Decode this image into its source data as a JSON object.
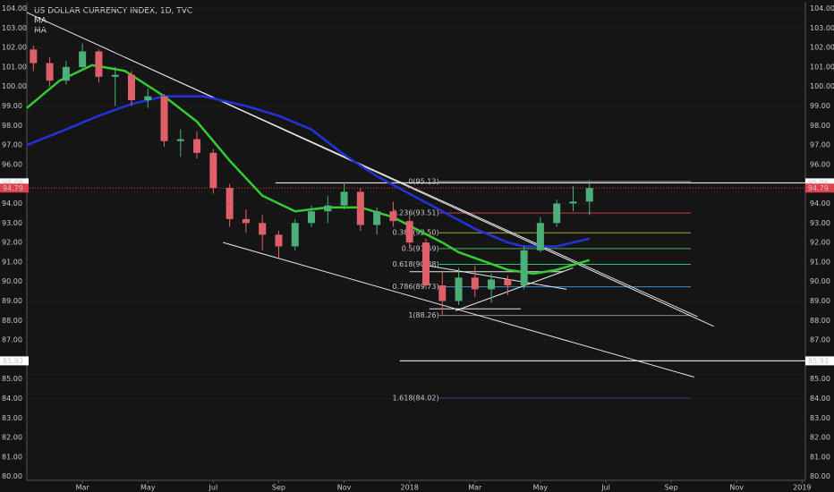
{
  "chart_data": {
    "type": "candlestick",
    "title": "US DOLLAR CURRENCY INDEX, 1D, TVC",
    "up_color": "#4caf7a",
    "down_color": "#e0606a",
    "x": [
      0.5,
      1.0,
      1.5,
      2.0,
      2.5,
      3.0,
      3.5,
      4.0,
      4.5,
      5.0,
      5.5,
      6.0,
      6.5,
      7.0,
      7.5,
      8.0,
      8.5,
      9.0,
      9.5,
      10.0,
      10.5,
      11.0,
      11.5,
      12.0,
      12.5,
      13.0,
      13.5,
      14.0,
      14.5,
      15.0,
      15.5,
      16.0,
      16.5,
      17.0,
      17.5
    ],
    "open": [
      101.9,
      101.2,
      100.3,
      101.0,
      101.8,
      100.5,
      100.6,
      99.3,
      99.5,
      97.2,
      97.3,
      96.6,
      94.8,
      93.2,
      93.0,
      92.4,
      91.8,
      93.0,
      93.6,
      93.9,
      94.6,
      92.9,
      93.6,
      93.1,
      92.0,
      89.8,
      89.0,
      90.2,
      89.6,
      90.1,
      89.8,
      91.6,
      93.0,
      94.0,
      94.1
    ],
    "high": [
      102.1,
      101.5,
      101.3,
      102.2,
      101.9,
      101.0,
      100.8,
      99.9,
      99.6,
      97.8,
      97.7,
      96.8,
      95.0,
      93.7,
      93.4,
      92.6,
      93.2,
      93.9,
      94.4,
      95.1,
      94.8,
      93.8,
      94.1,
      93.4,
      92.2,
      90.5,
      90.7,
      90.8,
      90.4,
      90.3,
      91.8,
      93.3,
      94.2,
      94.9,
      95.2
    ],
    "low": [
      100.8,
      100.0,
      100.1,
      100.9,
      100.2,
      99.0,
      99.0,
      98.9,
      96.9,
      96.4,
      96.3,
      94.5,
      92.8,
      92.5,
      91.6,
      91.2,
      91.6,
      92.8,
      93.0,
      93.7,
      92.6,
      92.4,
      92.8,
      91.7,
      89.6,
      88.3,
      88.8,
      89.2,
      88.9,
      89.3,
      89.6,
      91.5,
      92.8,
      93.6,
      93.4
    ],
    "close": [
      101.2,
      100.3,
      101.0,
      101.8,
      100.5,
      100.6,
      99.3,
      99.5,
      97.2,
      97.3,
      96.6,
      94.8,
      93.2,
      93.0,
      92.4,
      91.8,
      93.0,
      93.6,
      93.9,
      94.6,
      92.9,
      93.6,
      93.1,
      92.0,
      89.8,
      89.0,
      90.2,
      89.6,
      90.1,
      89.8,
      91.6,
      93.0,
      94.0,
      94.1,
      94.79
    ],
    "series": [
      {
        "name": "MA",
        "color": "#33cc33",
        "x": [
          0.3,
          1.3,
          2.3,
          3.3,
          4.5,
          5.5,
          6.5,
          7.5,
          8.5,
          9.5,
          10.5,
          11.5,
          12.3,
          13.0,
          13.5,
          14.5,
          15.0,
          15.8,
          16.5,
          17.5
        ],
        "values": [
          98.9,
          100.3,
          101.1,
          100.8,
          99.5,
          98.2,
          96.2,
          94.4,
          93.6,
          93.8,
          93.8,
          93.3,
          92.6,
          92.0,
          91.5,
          90.9,
          90.6,
          90.4,
          90.6,
          91.1
        ]
      },
      {
        "name": "MA",
        "color": "#2233dd",
        "x": [
          0.3,
          1.5,
          2.5,
          3.5,
          4.5,
          5.7,
          7.0,
          8.0,
          9.0,
          10.0,
          11.0,
          12.0,
          13.0,
          14.0,
          15.0,
          15.5,
          16.5,
          17.5
        ],
        "values": [
          97.0,
          97.8,
          98.5,
          99.1,
          99.5,
          99.5,
          99.0,
          98.5,
          97.8,
          96.5,
          95.4,
          94.5,
          93.6,
          92.7,
          92.0,
          91.8,
          91.8,
          92.2
        ]
      }
    ],
    "xlim": [
      0.3,
      24.1
    ],
    "xticks": [
      {
        "value": 2,
        "label": "Mar"
      },
      {
        "value": 4,
        "label": "May"
      },
      {
        "value": 6,
        "label": "Jul"
      },
      {
        "value": 8,
        "label": "Sep"
      },
      {
        "value": 10,
        "label": "Nov"
      },
      {
        "value": 12,
        "label": "2018"
      },
      {
        "value": 14,
        "label": "Mar"
      },
      {
        "value": 16,
        "label": "May"
      },
      {
        "value": 18,
        "label": "Jul"
      },
      {
        "value": 20,
        "label": "Sep"
      },
      {
        "value": 22,
        "label": "Nov"
      },
      {
        "value": 24,
        "label": "2019"
      }
    ],
    "ylim": [
      79.8,
      104.3
    ],
    "yticks": [
      {
        "value": 80,
        "label": "80.00"
      },
      {
        "value": 81,
        "label": "81.00"
      },
      {
        "value": 82,
        "label": "82.00"
      },
      {
        "value": 83,
        "label": "83.00"
      },
      {
        "value": 84,
        "label": "84.00"
      },
      {
        "value": 85,
        "label": "85.00"
      },
      {
        "value": 86,
        "label": "86.00"
      },
      {
        "value": 87,
        "label": "87.00"
      },
      {
        "value": 88,
        "label": "88.00"
      },
      {
        "value": 89,
        "label": "89.00"
      },
      {
        "value": 90,
        "label": "90.00"
      },
      {
        "value": 91,
        "label": "91.00"
      },
      {
        "value": 92,
        "label": "92.00"
      },
      {
        "value": 93,
        "label": "93.00"
      },
      {
        "value": 94,
        "label": "94.00"
      },
      {
        "value": 95,
        "label": "95.00"
      },
      {
        "value": 96,
        "label": "96.00"
      },
      {
        "value": 97,
        "label": "97.00"
      },
      {
        "value": 98,
        "label": "98.00"
      },
      {
        "value": 99,
        "label": "99.00"
      },
      {
        "value": 100,
        "label": "100.00"
      },
      {
        "value": 101,
        "label": "101.00"
      },
      {
        "value": 102,
        "label": "102.00"
      },
      {
        "value": 103,
        "label": "103.00"
      },
      {
        "value": 104,
        "label": "104.00"
      }
    ],
    "price_lines": [
      {
        "value": 95.06,
        "color": "#ffffff",
        "x0": 7.9,
        "dashed": false
      },
      {
        "value": 94.79,
        "color": "#e0404a",
        "x0": 0.3,
        "dashed": true
      },
      {
        "value": 85.93,
        "color": "#ffffff",
        "x0": 11.7,
        "dashed": false
      }
    ],
    "fib": {
      "x": [
        12.9,
        20.6
      ],
      "levels": [
        {
          "label": "0(95.13)",
          "value": 95.13,
          "color": "#8a8a8a"
        },
        {
          "label": "0.236(93.51)",
          "value": 93.51,
          "color": "#c0404a"
        },
        {
          "label": "0.382(92.50)",
          "value": 92.5,
          "color": "#a8a832"
        },
        {
          "label": "0.5(91.69)",
          "value": 91.69,
          "color": "#4caf50"
        },
        {
          "label": "0.618(90.88)",
          "value": 90.88,
          "color": "#2fbf6f"
        },
        {
          "label": "0.786(89.73)",
          "value": 89.73,
          "color": "#3a8fcf"
        },
        {
          "label": "1(88.26)",
          "value": 88.26,
          "color": "#8a8a8a"
        },
        {
          "label": "1.618(84.02)",
          "value": 84.02,
          "color": "#2a3aa8"
        }
      ]
    },
    "trend_lines": [
      {
        "x": [
          0.3,
          21.3
        ],
        "y": [
          103.8,
          87.7
        ]
      },
      {
        "x": [
          3.3,
          20.8
        ],
        "y": [
          101.5,
          88.2
        ]
      },
      {
        "x": [
          6.3,
          20.7
        ],
        "y": [
          92.0,
          85.1
        ]
      },
      {
        "x": [
          13.4,
          17.0
        ],
        "y": [
          88.5,
          90.7
        ]
      },
      {
        "x": [
          12.6,
          16.8
        ],
        "y": [
          90.8,
          89.6
        ]
      },
      {
        "x": [
          12.0,
          16.7
        ],
        "y": [
          90.5,
          90.5
        ]
      },
      {
        "x": [
          12.6,
          15.4
        ],
        "y": [
          88.6,
          88.6
        ]
      }
    ]
  }
}
